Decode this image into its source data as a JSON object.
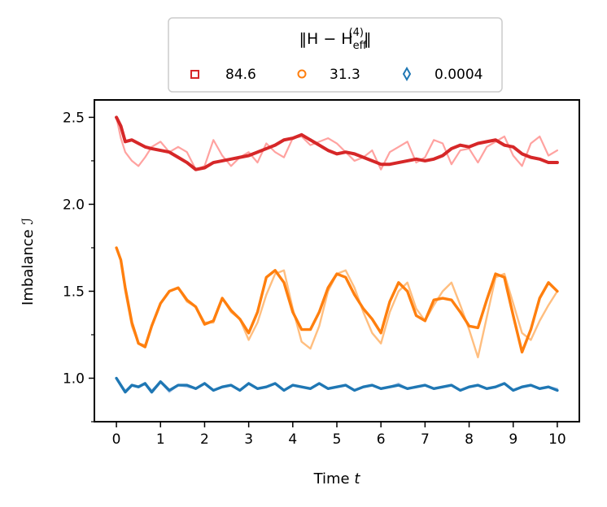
{
  "chart_data": {
    "type": "line",
    "xlabel_prefix": "Time ",
    "xlabel_var": "t",
    "ylabel_prefix": "Imbalance ",
    "ylabel_var": "ℐ",
    "xlim": [
      -0.5,
      10.5
    ],
    "ylim": [
      0.75,
      2.6
    ],
    "xticks": [
      0,
      1,
      2,
      3,
      4,
      5,
      6,
      7,
      8,
      9,
      10
    ],
    "xtick_labels": [
      "0",
      "1",
      "2",
      "3",
      "4",
      "5",
      "6",
      "7",
      "8",
      "9",
      "10"
    ],
    "yticks": [
      1.0,
      1.5,
      2.0,
      2.5
    ],
    "ytick_labels": [
      "1.0",
      "1.5",
      "2.0",
      "2.5"
    ],
    "legend": {
      "title_prefix": "‖H − H",
      "title_sub": "eff",
      "title_sup": "(4)",
      "title_suffix": "‖",
      "location": "top-center, outside axes",
      "entries": [
        {
          "label": "84.6",
          "marker": "square",
          "color": "#d62728"
        },
        {
          "label": "31.3",
          "marker": "circle",
          "color": "#ff7f0e"
        },
        {
          "label": "0.0004",
          "marker": "diamond",
          "color": "#1f77b4"
        }
      ]
    },
    "series": [
      {
        "name": "84.6 reference",
        "color": "#ff9896",
        "opacity": 0.9,
        "width": 2.2,
        "x": [
          0,
          0.1,
          0.2,
          0.35,
          0.5,
          0.65,
          0.8,
          1.0,
          1.2,
          1.4,
          1.6,
          1.8,
          2.0,
          2.2,
          2.4,
          2.6,
          2.8,
          3.0,
          3.2,
          3.4,
          3.6,
          3.8,
          4.0,
          4.2,
          4.4,
          4.6,
          4.8,
          5.0,
          5.2,
          5.4,
          5.6,
          5.8,
          6.0,
          6.2,
          6.4,
          6.6,
          6.8,
          7.0,
          7.2,
          7.4,
          7.6,
          7.8,
          8.0,
          8.2,
          8.4,
          8.6,
          8.8,
          9.0,
          9.2,
          9.4,
          9.6,
          9.8,
          10.0
        ],
        "values": [
          2.5,
          2.38,
          2.3,
          2.25,
          2.22,
          2.27,
          2.33,
          2.36,
          2.3,
          2.33,
          2.3,
          2.2,
          2.22,
          2.37,
          2.28,
          2.22,
          2.27,
          2.3,
          2.24,
          2.35,
          2.3,
          2.27,
          2.38,
          2.39,
          2.34,
          2.36,
          2.38,
          2.35,
          2.3,
          2.25,
          2.27,
          2.31,
          2.2,
          2.3,
          2.33,
          2.36,
          2.24,
          2.27,
          2.37,
          2.35,
          2.23,
          2.31,
          2.32,
          2.24,
          2.33,
          2.36,
          2.39,
          2.28,
          2.22,
          2.35,
          2.39,
          2.28,
          2.31
        ]
      },
      {
        "name": "84.6",
        "color": "#d62728",
        "opacity": 1,
        "width": 4,
        "x": [
          0,
          0.1,
          0.2,
          0.35,
          0.5,
          0.65,
          0.8,
          1.0,
          1.2,
          1.4,
          1.6,
          1.8,
          2.0,
          2.2,
          2.4,
          2.6,
          2.8,
          3.0,
          3.2,
          3.4,
          3.6,
          3.8,
          4.0,
          4.2,
          4.4,
          4.6,
          4.8,
          5.0,
          5.2,
          5.4,
          5.6,
          5.8,
          6.0,
          6.2,
          6.4,
          6.6,
          6.8,
          7.0,
          7.2,
          7.4,
          7.6,
          7.8,
          8.0,
          8.2,
          8.4,
          8.6,
          8.8,
          9.0,
          9.2,
          9.4,
          9.6,
          9.8,
          10.0
        ],
        "values": [
          2.5,
          2.45,
          2.36,
          2.37,
          2.35,
          2.33,
          2.32,
          2.31,
          2.3,
          2.27,
          2.24,
          2.2,
          2.21,
          2.24,
          2.25,
          2.26,
          2.27,
          2.28,
          2.3,
          2.32,
          2.34,
          2.37,
          2.38,
          2.4,
          2.37,
          2.34,
          2.31,
          2.29,
          2.3,
          2.29,
          2.27,
          2.25,
          2.23,
          2.23,
          2.24,
          2.25,
          2.26,
          2.25,
          2.26,
          2.28,
          2.32,
          2.34,
          2.33,
          2.35,
          2.36,
          2.37,
          2.34,
          2.33,
          2.29,
          2.27,
          2.26,
          2.24,
          2.24
        ]
      },
      {
        "name": "31.3 reference",
        "color": "#ffbb78",
        "opacity": 0.95,
        "width": 2.4,
        "x": [
          0,
          0.1,
          0.2,
          0.35,
          0.5,
          0.65,
          0.8,
          1.0,
          1.2,
          1.4,
          1.6,
          1.8,
          2.0,
          2.2,
          2.4,
          2.6,
          2.8,
          3.0,
          3.2,
          3.4,
          3.6,
          3.8,
          4.0,
          4.2,
          4.4,
          4.6,
          4.8,
          5.0,
          5.2,
          5.4,
          5.6,
          5.8,
          6.0,
          6.2,
          6.4,
          6.6,
          6.8,
          7.0,
          7.2,
          7.4,
          7.6,
          7.8,
          8.0,
          8.2,
          8.4,
          8.6,
          8.8,
          9.0,
          9.2,
          9.4,
          9.6,
          9.8,
          10.0
        ],
        "values": [
          1.75,
          1.68,
          1.5,
          1.3,
          1.2,
          1.19,
          1.3,
          1.43,
          1.5,
          1.52,
          1.44,
          1.41,
          1.32,
          1.32,
          1.46,
          1.38,
          1.34,
          1.22,
          1.32,
          1.48,
          1.6,
          1.62,
          1.4,
          1.21,
          1.17,
          1.3,
          1.5,
          1.6,
          1.62,
          1.52,
          1.38,
          1.26,
          1.2,
          1.38,
          1.5,
          1.55,
          1.4,
          1.33,
          1.42,
          1.5,
          1.55,
          1.42,
          1.28,
          1.12,
          1.35,
          1.58,
          1.6,
          1.43,
          1.26,
          1.22,
          1.33,
          1.42,
          1.5
        ]
      },
      {
        "name": "31.3",
        "color": "#ff7f0e",
        "opacity": 1,
        "width": 3.4,
        "x": [
          0,
          0.1,
          0.2,
          0.35,
          0.5,
          0.65,
          0.8,
          1.0,
          1.2,
          1.4,
          1.6,
          1.8,
          2.0,
          2.2,
          2.4,
          2.6,
          2.8,
          3.0,
          3.2,
          3.4,
          3.6,
          3.8,
          4.0,
          4.2,
          4.4,
          4.6,
          4.8,
          5.0,
          5.2,
          5.4,
          5.6,
          5.8,
          6.0,
          6.2,
          6.4,
          6.6,
          6.8,
          7.0,
          7.2,
          7.4,
          7.6,
          7.8,
          8.0,
          8.2,
          8.4,
          8.6,
          8.8,
          9.0,
          9.2,
          9.4,
          9.6,
          9.8,
          10.0
        ],
        "values": [
          1.75,
          1.68,
          1.52,
          1.32,
          1.2,
          1.18,
          1.3,
          1.43,
          1.5,
          1.52,
          1.45,
          1.41,
          1.31,
          1.33,
          1.46,
          1.39,
          1.34,
          1.26,
          1.38,
          1.58,
          1.62,
          1.55,
          1.38,
          1.28,
          1.28,
          1.38,
          1.52,
          1.6,
          1.58,
          1.48,
          1.4,
          1.34,
          1.26,
          1.44,
          1.55,
          1.5,
          1.36,
          1.33,
          1.45,
          1.46,
          1.45,
          1.38,
          1.3,
          1.29,
          1.45,
          1.6,
          1.58,
          1.36,
          1.15,
          1.28,
          1.46,
          1.55,
          1.5
        ]
      },
      {
        "name": "0.0004 reference",
        "color": "#aec7e8",
        "opacity": 0.9,
        "width": 2.2,
        "x": [
          0,
          0.1,
          0.2,
          0.35,
          0.5,
          0.65,
          0.8,
          1.0,
          1.2,
          1.4,
          1.6,
          1.8,
          2.0,
          2.2,
          2.4,
          2.6,
          2.8,
          3.0,
          3.2,
          3.4,
          3.6,
          3.8,
          4.0,
          4.2,
          4.4,
          4.6,
          4.8,
          5.0,
          5.2,
          5.4,
          5.6,
          5.8,
          6.0,
          6.2,
          6.4,
          6.6,
          6.8,
          7.0,
          7.2,
          7.4,
          7.6,
          7.8,
          8.0,
          8.2,
          8.4,
          8.6,
          8.8,
          9.0,
          9.2,
          9.4,
          9.6,
          9.8,
          10.0
        ],
        "values": [
          1.0,
          0.96,
          0.93,
          0.96,
          0.95,
          0.97,
          0.93,
          0.98,
          0.92,
          0.96,
          0.95,
          0.94,
          0.97,
          0.93,
          0.95,
          0.96,
          0.93,
          0.97,
          0.94,
          0.95,
          0.97,
          0.93,
          0.96,
          0.95,
          0.94,
          0.97,
          0.94,
          0.95,
          0.96,
          0.93,
          0.95,
          0.96,
          0.94,
          0.95,
          0.97,
          0.94,
          0.95,
          0.96,
          0.94,
          0.95,
          0.96,
          0.93,
          0.95,
          0.96,
          0.94,
          0.95,
          0.97,
          0.93,
          0.95,
          0.96,
          0.94,
          0.95,
          0.94
        ]
      },
      {
        "name": "0.0004",
        "color": "#1f77b4",
        "opacity": 1,
        "width": 3.4,
        "x": [
          0,
          0.1,
          0.2,
          0.35,
          0.5,
          0.65,
          0.8,
          1.0,
          1.2,
          1.4,
          1.6,
          1.8,
          2.0,
          2.2,
          2.4,
          2.6,
          2.8,
          3.0,
          3.2,
          3.4,
          3.6,
          3.8,
          4.0,
          4.2,
          4.4,
          4.6,
          4.8,
          5.0,
          5.2,
          5.4,
          5.6,
          5.8,
          6.0,
          6.2,
          6.4,
          6.6,
          6.8,
          7.0,
          7.2,
          7.4,
          7.6,
          7.8,
          8.0,
          8.2,
          8.4,
          8.6,
          8.8,
          9.0,
          9.2,
          9.4,
          9.6,
          9.8,
          10.0
        ],
        "values": [
          1.0,
          0.96,
          0.92,
          0.96,
          0.95,
          0.97,
          0.92,
          0.98,
          0.93,
          0.96,
          0.96,
          0.94,
          0.97,
          0.93,
          0.95,
          0.96,
          0.93,
          0.97,
          0.94,
          0.95,
          0.97,
          0.93,
          0.96,
          0.95,
          0.94,
          0.97,
          0.94,
          0.95,
          0.96,
          0.93,
          0.95,
          0.96,
          0.94,
          0.95,
          0.96,
          0.94,
          0.95,
          0.96,
          0.94,
          0.95,
          0.96,
          0.93,
          0.95,
          0.96,
          0.94,
          0.95,
          0.97,
          0.93,
          0.95,
          0.96,
          0.94,
          0.95,
          0.93
        ]
      }
    ]
  }
}
